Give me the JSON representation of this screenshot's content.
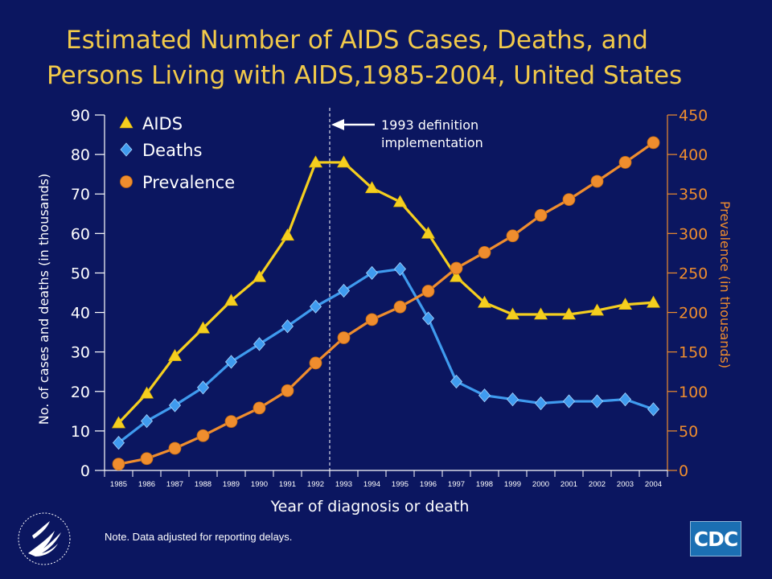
{
  "slide": {
    "title_line1": "Estimated Number of AIDS Cases, Deaths, and",
    "title_line2": "Persons Living with AIDS,1985-2004,  United States",
    "note": "Note. Data adjusted for reporting delays.",
    "cdc_logo_text": "CDC",
    "hhs_logo_icon": "hhs-eagle-seal-icon"
  },
  "colors": {
    "background": "#0b1660",
    "title": "#f1c94a",
    "aids": "#f5cf1f",
    "deaths": "#3f9bef",
    "prevalence": "#ef8d2e",
    "axis_left": "#ffffff",
    "axis_right": "#ef8d2e"
  },
  "chart_data": {
    "type": "line",
    "xlabel": "Year of diagnosis or death",
    "ylabel_left": "No. of cases and deaths (in thousands)",
    "ylabel_right": "Prevalence (in thousands)",
    "ylim_left": [
      0,
      90
    ],
    "ylim_right": [
      0,
      450
    ],
    "yticks_left": [
      "0",
      "10",
      "20",
      "30",
      "40",
      "50",
      "60",
      "70",
      "80",
      "90"
    ],
    "yticks_right": [
      "0",
      "50",
      "100",
      "150",
      "200",
      "250",
      "300",
      "350",
      "400",
      "450"
    ],
    "x": [
      "1985",
      "1986",
      "1987",
      "1988",
      "1989",
      "1990",
      "1991",
      "1992",
      "1993",
      "1994",
      "1995",
      "1996",
      "1997",
      "1998",
      "1999",
      "2000",
      "2001",
      "2002",
      "2003",
      "2004"
    ],
    "series": [
      {
        "name": "AIDS",
        "axis": "left",
        "marker": "triangle",
        "values": [
          12,
          19.5,
          29,
          36,
          43,
          49,
          59.5,
          78,
          78,
          71.5,
          68,
          60,
          49,
          42.5,
          39.5,
          39.5,
          39.5,
          40.5,
          42,
          42.5
        ]
      },
      {
        "name": "Deaths",
        "axis": "left",
        "marker": "diamond",
        "values": [
          7,
          12.5,
          16.5,
          21,
          27.5,
          32,
          36.5,
          41.5,
          45.5,
          50,
          51,
          38.5,
          22.5,
          19,
          18,
          17,
          17.5,
          17.5,
          18,
          15.5
        ]
      },
      {
        "name": "Prevalence",
        "axis": "right",
        "marker": "circle",
        "values": [
          8,
          15,
          28,
          44,
          62,
          79,
          101,
          136,
          168,
          191,
          207,
          227,
          256,
          276,
          297,
          323,
          343,
          366,
          390,
          415
        ]
      }
    ],
    "annotation": {
      "text_line1": "1993 definition",
      "text_line2": "implementation",
      "x": "1993"
    },
    "legend_position": "top-left",
    "grid": false
  }
}
